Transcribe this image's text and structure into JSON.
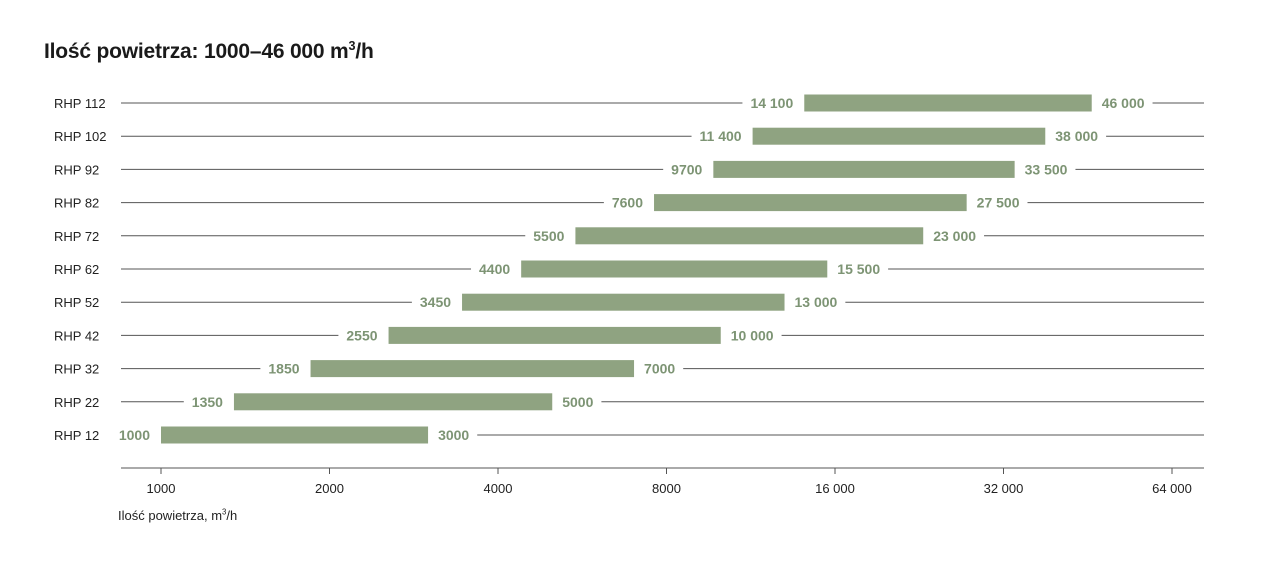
{
  "title": {
    "main": "Ilość powietrza: 1000–46 000 m",
    "sup": "3",
    "suffix": "/h"
  },
  "chart_data": {
    "type": "bar",
    "orientation": "horizontal-range",
    "title": "Ilość powietrza: 1000–46 000 m³/h",
    "xlabel": {
      "main": "Ilość powietrza, m",
      "sup": "3",
      "suffix": "/h"
    },
    "x_scale": "log2",
    "xlim": [
      900,
      72000
    ],
    "x_ticks": [
      1000,
      2000,
      4000,
      8000,
      16000,
      32000,
      64000
    ],
    "x_tick_labels": [
      "1000",
      "2000",
      "4000",
      "8000",
      "16 000",
      "32 000",
      "64 000"
    ],
    "bar_color": "#8fa381",
    "label_color": "#7d9474",
    "rows": [
      {
        "name": "RHP 112",
        "min": 14100,
        "max": 46000,
        "min_label": "14 100",
        "max_label": "46 000"
      },
      {
        "name": "RHP 102",
        "min": 11400,
        "max": 38000,
        "min_label": "11 400",
        "max_label": "38 000"
      },
      {
        "name": "RHP 92",
        "min": 9700,
        "max": 33500,
        "min_label": "9700",
        "max_label": "33 500"
      },
      {
        "name": "RHP 82",
        "min": 7600,
        "max": 27500,
        "min_label": "7600",
        "max_label": "27 500"
      },
      {
        "name": "RHP 72",
        "min": 5500,
        "max": 23000,
        "min_label": "5500",
        "max_label": "23 000"
      },
      {
        "name": "RHP 62",
        "min": 4400,
        "max": 15500,
        "min_label": "4400",
        "max_label": "15 500"
      },
      {
        "name": "RHP 52",
        "min": 3450,
        "max": 13000,
        "min_label": "3450",
        "max_label": "13 000"
      },
      {
        "name": "RHP 42",
        "min": 2550,
        "max": 10000,
        "min_label": "2550",
        "max_label": "10 000"
      },
      {
        "name": "RHP 32",
        "min": 1850,
        "max": 7000,
        "min_label": "1850",
        "max_label": "7000"
      },
      {
        "name": "RHP 22",
        "min": 1350,
        "max": 5000,
        "min_label": "1350",
        "max_label": "5000"
      },
      {
        "name": "RHP 12",
        "min": 1000,
        "max": 3000,
        "min_label": "1000",
        "max_label": "3000"
      }
    ]
  }
}
